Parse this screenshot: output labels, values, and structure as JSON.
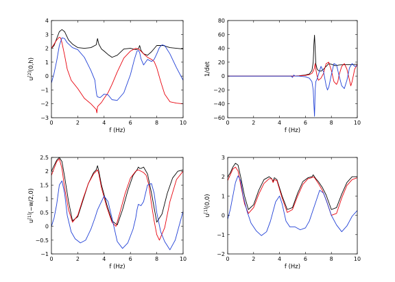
{
  "chart_data": [
    {
      "type": "line",
      "xlabel": "f (Hz)",
      "ylabel": "u[2](0,h)",
      "ylabel_base": "u",
      "ylabel_sup": "[2]",
      "ylabel_rest": "(0,h)",
      "xlim": [
        0,
        10
      ],
      "ylim": [
        -3,
        4
      ],
      "xticks": [
        "0",
        "2",
        "4",
        "6",
        "8",
        "10"
      ],
      "yticks": [
        "-3",
        "-2",
        "-1",
        "0",
        "1",
        "2",
        "3",
        "4"
      ],
      "grid": false,
      "series": [
        {
          "color": "#000000",
          "x": [
            0,
            0.2,
            0.4,
            0.6,
            0.8,
            1.0,
            1.3,
            1.6,
            2.0,
            2.5,
            3.0,
            3.4,
            3.5,
            3.6,
            3.8,
            4.0,
            4.3,
            4.6,
            5.0,
            5.5,
            6.0,
            6.4,
            6.6,
            6.7,
            6.8,
            7.0,
            7.3,
            7.6,
            8.0,
            8.5,
            9.0,
            9.5,
            10.0
          ],
          "y": [
            2.0,
            2.2,
            2.7,
            3.2,
            3.35,
            3.2,
            2.6,
            2.3,
            2.05,
            2.0,
            2.05,
            2.25,
            2.7,
            2.3,
            1.95,
            1.8,
            1.55,
            1.35,
            1.5,
            1.95,
            2.0,
            1.9,
            1.95,
            2.2,
            1.85,
            1.6,
            1.5,
            1.75,
            2.2,
            2.2,
            2.05,
            2.0,
            1.95
          ]
        },
        {
          "color": "#e8000b",
          "x": [
            0,
            0.2,
            0.4,
            0.6,
            0.7,
            0.8,
            1.0,
            1.2,
            1.5,
            2.0,
            2.5,
            3.0,
            3.4,
            3.45,
            3.5,
            3.6,
            3.8,
            4.0,
            4.3,
            4.6,
            5.0,
            5.5,
            6.0,
            6.4,
            6.6,
            6.8,
            7.0,
            7.3,
            7.6,
            7.8,
            8.0,
            8.3,
            8.6,
            9.0,
            9.5,
            10.0
          ],
          "y": [
            2.0,
            2.3,
            2.6,
            2.8,
            2.75,
            2.4,
            1.5,
            0.5,
            -0.3,
            -0.9,
            -1.6,
            -2.0,
            -2.4,
            -2.65,
            -2.2,
            -2.1,
            -1.9,
            -1.6,
            -1.2,
            -0.6,
            0.3,
            1.3,
            1.8,
            2.0,
            1.95,
            1.8,
            1.6,
            1.35,
            1.2,
            1.05,
            0.6,
            -0.4,
            -1.3,
            -1.85,
            -1.95,
            -2.0
          ]
        },
        {
          "color": "#1f3fd6",
          "x": [
            0,
            0.2,
            0.4,
            0.6,
            0.8,
            1.0,
            1.2,
            1.6,
            2.0,
            2.5,
            3.0,
            3.3,
            3.4,
            3.45,
            3.5,
            3.7,
            4.0,
            4.3,
            4.6,
            5.0,
            5.5,
            6.0,
            6.3,
            6.5,
            6.6,
            6.7,
            6.8,
            7.0,
            7.3,
            7.6,
            7.8,
            8.0,
            8.2,
            8.4,
            8.6,
            9.0,
            9.5,
            10.0
          ],
          "y": [
            -0.5,
            0.2,
            1.1,
            2.2,
            2.75,
            2.7,
            2.4,
            2.05,
            1.9,
            1.35,
            0.4,
            -0.3,
            -1.1,
            -1.4,
            -1.5,
            -1.55,
            -1.3,
            -1.35,
            -1.7,
            -1.75,
            -1.2,
            0.1,
            1.2,
            1.8,
            1.85,
            1.7,
            1.25,
            0.8,
            1.2,
            1.05,
            1.2,
            1.6,
            2.05,
            2.25,
            2.2,
            1.6,
            0.6,
            -0.3
          ]
        }
      ]
    },
    {
      "type": "line",
      "xlabel": "f (Hz)",
      "ylabel": "1/det",
      "xlim": [
        0,
        10
      ],
      "ylim": [
        -60,
        80
      ],
      "xticks": [
        "0",
        "2",
        "4",
        "6",
        "8",
        "10"
      ],
      "yticks": [
        "-60",
        "-40",
        "-20",
        "0",
        "20",
        "40",
        "60",
        "80"
      ],
      "grid": false,
      "series": [
        {
          "color": "#000000",
          "x": [
            0,
            2,
            4,
            5,
            5.5,
            6.0,
            6.3,
            6.5,
            6.6,
            6.65,
            6.7,
            6.75,
            6.8,
            6.9,
            7.0,
            7.2,
            7.4,
            7.6,
            7.8,
            8.0,
            8.3,
            8.6,
            9.0,
            9.5,
            10.0
          ],
          "y": [
            0,
            0,
            0,
            0,
            0.5,
            1.5,
            3,
            8,
            20,
            45,
            59,
            40,
            18,
            10,
            8,
            7,
            10,
            14,
            18,
            17,
            15,
            16,
            16.5,
            16.5,
            17
          ]
        },
        {
          "color": "#e8000b",
          "x": [
            0,
            2,
            4,
            5,
            5.5,
            6.0,
            6.3,
            6.5,
            6.6,
            6.7,
            6.75,
            6.8,
            6.9,
            7.0,
            7.2,
            7.4,
            7.5,
            7.6,
            7.8,
            8.0,
            8.2,
            8.4,
            8.5,
            8.6,
            8.8,
            9.0,
            9.2,
            9.4,
            9.5,
            9.6,
            9.8,
            10.0
          ],
          "y": [
            0,
            0,
            0,
            0,
            0.3,
            1,
            2,
            4,
            7,
            12,
            18,
            10,
            0,
            -6,
            -3,
            4,
            12,
            18,
            20,
            8,
            -8,
            -12,
            -8,
            2,
            14,
            18,
            10,
            -6,
            -14,
            -8,
            10,
            17
          ]
        },
        {
          "color": "#1f3fd6",
          "x": [
            0,
            2,
            4,
            4.9,
            5.0,
            5.1,
            5.2,
            5.5,
            6.0,
            6.3,
            6.5,
            6.6,
            6.65,
            6.7,
            6.72,
            6.75,
            6.8,
            6.9,
            7.0,
            7.2,
            7.4,
            7.6,
            7.7,
            7.8,
            8.0,
            8.2,
            8.4,
            8.6,
            8.8,
            9.0,
            9.2,
            9.4,
            9.6,
            9.8,
            10.0
          ],
          "y": [
            0,
            0,
            0,
            0,
            -2,
            1.5,
            0,
            0,
            -1,
            -3,
            -8,
            -20,
            -40,
            -58,
            -45,
            -20,
            -8,
            -4,
            2,
            14,
            6,
            -14,
            -20,
            -16,
            2,
            18,
            16,
            0,
            -14,
            -18,
            -6,
            12,
            18,
            14,
            15
          ]
        }
      ]
    },
    {
      "type": "line",
      "xlabel": "f (Hz)",
      "ylabel": "u[1](-w/2,0)",
      "ylabel_base": "u",
      "ylabel_sup": "[1]",
      "ylabel_rest": "(−w/2,0)",
      "xlim": [
        0,
        10
      ],
      "ylim": [
        -1,
        2.5
      ],
      "xticks": [
        "0",
        "2",
        "4",
        "6",
        "8",
        "10"
      ],
      "yticks": [
        "-1",
        "-0.5",
        "0",
        "0.5",
        "1",
        "1.5",
        "2",
        "2.5"
      ],
      "grid": false,
      "series": [
        {
          "color": "#000000",
          "x": [
            0,
            0.2,
            0.4,
            0.6,
            0.8,
            1.0,
            1.3,
            1.6,
            2.0,
            2.4,
            2.8,
            3.2,
            3.4,
            3.5,
            3.6,
            3.8,
            4.2,
            4.6,
            5.0,
            5.4,
            5.8,
            6.2,
            6.5,
            6.6,
            6.7,
            6.8,
            7.0,
            7.3,
            7.6,
            8.0,
            8.4,
            8.8,
            9.2,
            9.6,
            10.0
          ],
          "y": [
            2.0,
            2.2,
            2.4,
            2.5,
            2.35,
            1.8,
            0.9,
            0.2,
            0.35,
            0.95,
            1.55,
            1.95,
            2.05,
            2.2,
            2.0,
            1.5,
            0.8,
            0.2,
            0.05,
            0.6,
            1.3,
            1.85,
            2.05,
            2.15,
            2.1,
            2.1,
            2.15,
            1.9,
            1.2,
            0.15,
            0.45,
            1.2,
            1.75,
            2.0,
            2.05
          ]
        },
        {
          "color": "#e8000b",
          "x": [
            0,
            0.2,
            0.4,
            0.6,
            0.8,
            1.0,
            1.3,
            1.6,
            2.0,
            2.4,
            2.8,
            3.2,
            3.4,
            3.5,
            3.6,
            3.8,
            4.2,
            4.6,
            4.9,
            5.2,
            5.6,
            6.0,
            6.4,
            6.6,
            6.8,
            7.0,
            7.2,
            7.4,
            7.6,
            7.8,
            8.0,
            8.2,
            8.6,
            9.0,
            9.5,
            10.0
          ],
          "y": [
            1.85,
            2.1,
            2.35,
            2.45,
            2.1,
            1.4,
            0.6,
            0.15,
            0.4,
            1.0,
            1.55,
            1.9,
            2.0,
            2.05,
            1.9,
            1.4,
            0.7,
            0.15,
            0.0,
            0.5,
            1.2,
            1.75,
            2.0,
            2.05,
            2.0,
            1.95,
            1.85,
            1.5,
            0.8,
            0.2,
            -0.3,
            -0.5,
            -0.05,
            0.9,
            1.7,
            2.0
          ]
        },
        {
          "color": "#1f3fd6",
          "x": [
            0,
            0.2,
            0.4,
            0.6,
            0.8,
            1.0,
            1.2,
            1.5,
            1.8,
            2.2,
            2.6,
            3.0,
            3.3,
            3.4,
            3.5,
            3.7,
            4.0,
            4.3,
            4.6,
            5.0,
            5.4,
            5.8,
            6.2,
            6.4,
            6.5,
            6.6,
            6.8,
            7.0,
            7.3,
            7.6,
            7.8,
            8.0,
            8.3,
            8.6,
            9.0,
            9.4,
            9.8,
            10.0
          ],
          "y": [
            0.0,
            0.3,
            0.8,
            1.5,
            1.65,
            1.2,
            0.4,
            -0.2,
            -0.45,
            -0.6,
            -0.5,
            -0.1,
            0.3,
            0.45,
            0.6,
            0.8,
            1.1,
            0.9,
            0.3,
            -0.55,
            -0.8,
            -0.6,
            -0.1,
            0.3,
            0.6,
            0.8,
            0.75,
            0.9,
            1.5,
            1.55,
            1.2,
            0.5,
            -0.2,
            -0.55,
            -0.85,
            -0.5,
            0.2,
            0.55
          ]
        }
      ]
    },
    {
      "type": "line",
      "xlabel": "f (Hz)",
      "ylabel": "u[1](0,0)",
      "ylabel_base": "u",
      "ylabel_sup": "[1]",
      "ylabel_rest": "(0,0)",
      "xlim": [
        0,
        10
      ],
      "ylim": [
        -2,
        3
      ],
      "xticks": [
        "0",
        "2",
        "4",
        "6",
        "8",
        "10"
      ],
      "yticks": [
        "-2",
        "-1",
        "0",
        "1",
        "2",
        "3"
      ],
      "grid": false,
      "series": [
        {
          "color": "#000000",
          "x": [
            0,
            0.2,
            0.4,
            0.6,
            0.8,
            1.0,
            1.3,
            1.6,
            2.0,
            2.4,
            2.8,
            3.2,
            3.4,
            3.5,
            3.6,
            3.8,
            4.2,
            4.6,
            5.0,
            5.4,
            5.8,
            6.2,
            6.5,
            6.6,
            6.7,
            6.8,
            7.0,
            7.3,
            7.6,
            8.0,
            8.4,
            8.8,
            9.2,
            9.6,
            10.0
          ],
          "y": [
            2.0,
            2.2,
            2.5,
            2.7,
            2.6,
            2.0,
            1.0,
            0.3,
            0.55,
            1.3,
            1.85,
            2.0,
            1.9,
            1.75,
            1.95,
            1.85,
            1.0,
            0.3,
            0.4,
            1.15,
            1.75,
            1.95,
            2.0,
            2.1,
            2.0,
            1.9,
            1.75,
            1.45,
            1.05,
            0.3,
            0.4,
            1.1,
            1.7,
            2.0,
            2.0
          ]
        },
        {
          "color": "#e8000b",
          "x": [
            0,
            0.2,
            0.4,
            0.6,
            0.8,
            1.0,
            1.3,
            1.6,
            2.0,
            2.4,
            2.8,
            3.2,
            3.4,
            3.5,
            3.6,
            3.8,
            4.2,
            4.6,
            5.0,
            5.4,
            5.8,
            6.2,
            6.5,
            6.6,
            6.7,
            6.8,
            7.0,
            7.3,
            7.6,
            8.0,
            8.4,
            8.8,
            9.2,
            9.6,
            10.0
          ],
          "y": [
            1.8,
            2.1,
            2.4,
            2.5,
            2.3,
            1.6,
            0.6,
            0.1,
            0.4,
            1.1,
            1.65,
            1.9,
            1.9,
            1.7,
            1.85,
            1.8,
            0.9,
            0.15,
            0.3,
            1.0,
            1.6,
            1.9,
            1.95,
            2.0,
            1.95,
            1.85,
            1.65,
            1.3,
            0.8,
            0.0,
            0.1,
            0.9,
            1.55,
            1.85,
            1.95
          ]
        },
        {
          "color": "#1f3fd6",
          "x": [
            0,
            0.2,
            0.4,
            0.6,
            0.8,
            1.0,
            1.2,
            1.5,
            1.8,
            2.2,
            2.6,
            3.0,
            3.3,
            3.5,
            3.7,
            4.0,
            4.2,
            4.5,
            4.8,
            5.2,
            5.6,
            6.0,
            6.3,
            6.5,
            6.7,
            6.9,
            7.1,
            7.4,
            7.7,
            8.0,
            8.4,
            8.8,
            9.2,
            9.6,
            10.0
          ],
          "y": [
            -0.2,
            0.3,
            1.0,
            1.7,
            2.05,
            1.8,
            1.0,
            0.2,
            -0.4,
            -0.8,
            -1.05,
            -0.85,
            -0.3,
            0.2,
            0.7,
            1.0,
            0.6,
            -0.3,
            -0.6,
            -0.6,
            -0.75,
            -0.65,
            -0.3,
            0.1,
            0.5,
            0.9,
            1.3,
            1.15,
            0.6,
            0.0,
            -0.5,
            -0.85,
            -0.55,
            -0.05,
            0.25
          ]
        }
      ]
    }
  ]
}
